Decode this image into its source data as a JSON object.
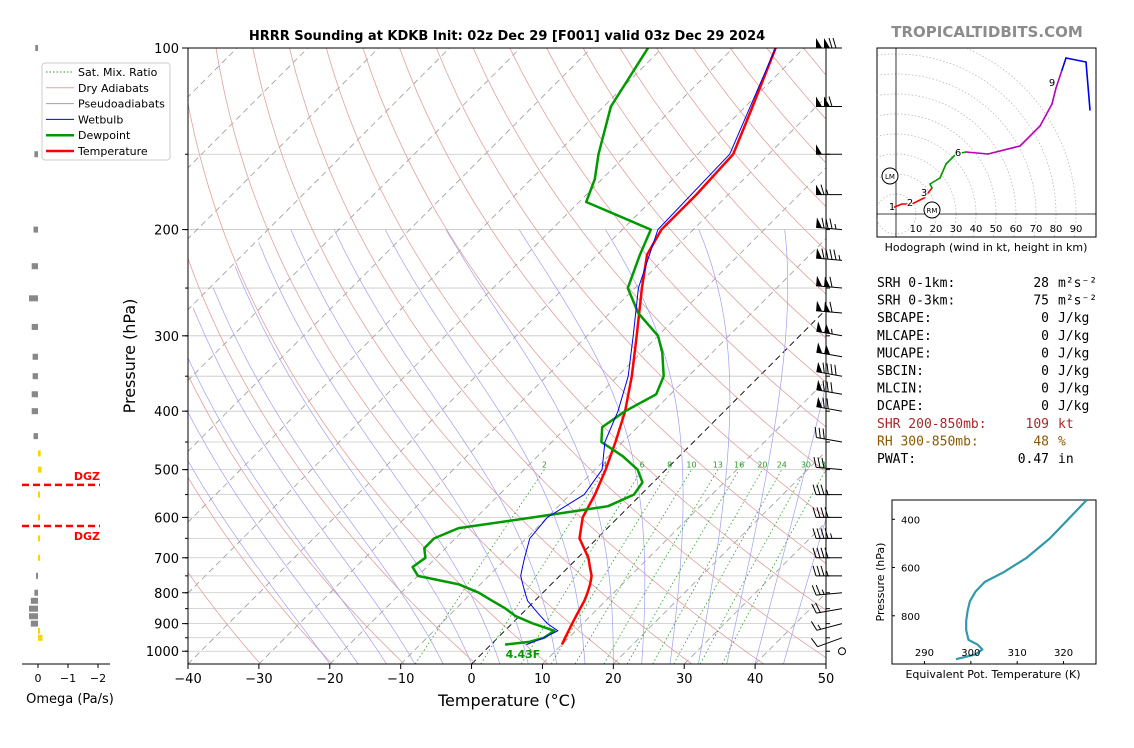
{
  "header": {
    "title": "HRRR Sounding at KDKB Init: 02z Dec 29 [F001] valid 03z Dec 29 2024",
    "watermark": "TROPICALTIDBITS.COM"
  },
  "colors": {
    "temperature": "#ff0000",
    "dewpoint": "#009900",
    "wetbulb": "#0000ee",
    "dry_adiabat": "#e0a0a0",
    "pseudoadiabat": "#a0a0a0",
    "mixing_ratio": "#2a9a2a",
    "isotherm": "#a0a0ee",
    "dgz": "#ff0000",
    "shr": "#a52a2a",
    "rh": "#8b5a00",
    "theta_e": "#3399aa"
  },
  "legend": {
    "items": [
      {
        "key": "sat_mix",
        "label": "Sat. Mix. Ratio"
      },
      {
        "key": "dry",
        "label": "Dry Adiabats"
      },
      {
        "key": "pseudo",
        "label": "Pseudoadiabats"
      },
      {
        "key": "wetbulb",
        "label": "Wetbulb"
      },
      {
        "key": "dewpoint",
        "label": "Dewpoint"
      },
      {
        "key": "temperature",
        "label": "Temperature"
      }
    ]
  },
  "chart_data": [
    {
      "type": "line",
      "name": "skewt",
      "xlabel": "Temperature (°C)",
      "ylabel": "Pressure (hPa)",
      "xlim": [
        -40,
        50
      ],
      "ylim": [
        1050,
        100
      ],
      "y_scale": "log",
      "x_ticks": [
        -40,
        -30,
        -20,
        -10,
        0,
        10,
        20,
        30,
        40,
        50
      ],
      "x_tick_labels": [
        "−40",
        "−30",
        "−20",
        "−10",
        "0",
        "10",
        "20",
        "30",
        "40",
        "50"
      ],
      "y_ticks": [
        1000,
        900,
        800,
        700,
        600,
        500,
        400,
        300,
        200,
        100
      ],
      "y_tick_labels": [
        "1000",
        "900",
        "800",
        "700",
        "600",
        "500",
        "400",
        "300",
        "200",
        "100"
      ],
      "mixing_ratio_labels": [
        "2",
        "4",
        "6",
        "8",
        "10",
        "13",
        "16",
        "20",
        "24",
        "30",
        "36"
      ],
      "series": [
        {
          "key": "temperature",
          "name": "Temperature",
          "p": [
            975,
            950,
            925,
            900,
            875,
            850,
            825,
            800,
            775,
            750,
            725,
            700,
            650,
            600,
            550,
            500,
            450,
            400,
            350,
            300,
            250,
            220,
            200,
            175,
            150,
            125,
            100
          ],
          "t": [
            10.0,
            9.5,
            9.0,
            8.5,
            8.0,
            7.5,
            7.0,
            6.3,
            5.5,
            4.5,
            3.0,
            1.5,
            -2.5,
            -5.0,
            -6.5,
            -8.5,
            -11.0,
            -14.0,
            -18.0,
            -23.0,
            -29.0,
            -33.0,
            -34.5,
            -34.5,
            -35.0,
            -39.0,
            -44.0
          ]
        },
        {
          "key": "dewpoint",
          "name": "Dewpoint",
          "p": [
            975,
            965,
            950,
            925,
            900,
            875,
            850,
            825,
            800,
            775,
            750,
            725,
            700,
            675,
            650,
            625,
            600,
            575,
            550,
            525,
            500,
            475,
            450,
            425,
            400,
            375,
            350,
            320,
            300,
            275,
            250,
            220,
            200,
            180,
            165,
            150,
            125,
            100
          ],
          "t": [
            2.0,
            5.0,
            6.5,
            7.0,
            3.0,
            -0.5,
            -3.0,
            -6.0,
            -9.0,
            -13.0,
            -20.0,
            -22.0,
            -21.5,
            -23.0,
            -23.0,
            -21.0,
            -12.0,
            -3.0,
            -1.0,
            -1.5,
            -4.0,
            -8.0,
            -13.0,
            -15.0,
            -14.0,
            -12.0,
            -13.5,
            -17.0,
            -20.0,
            -26.0,
            -31.0,
            -34.0,
            -36.0,
            -49.0,
            -51.0,
            -54.0,
            -59.0,
            -62.0
          ]
        },
        {
          "key": "wetbulb",
          "name": "Wetbulb",
          "p": [
            975,
            950,
            925,
            900,
            875,
            850,
            825,
            800,
            775,
            750,
            725,
            700,
            650,
            600,
            550,
            500,
            450,
            400,
            350,
            300,
            250,
            200,
            150,
            100
          ],
          "t": [
            5.0,
            6.5,
            7.5,
            5.0,
            3.0,
            1.0,
            -1.0,
            -2.5,
            -4.0,
            -5.5,
            -6.5,
            -7.5,
            -9.5,
            -10.0,
            -8.0,
            -9.0,
            -12.5,
            -15.0,
            -18.5,
            -23.5,
            -29.5,
            -35.0,
            -35.5,
            -44.0
          ]
        }
      ],
      "surface_label": "4.43F",
      "dgz": [
        {
          "p": 530,
          "label": "DGZ"
        },
        {
          "p": 620,
          "label": "DGZ"
        }
      ],
      "wind_barbs": {
        "p": [
          1000,
          950,
          900,
          850,
          800,
          750,
          700,
          650,
          600,
          550,
          500,
          450,
          400,
          375,
          350,
          325,
          300,
          275,
          250,
          225,
          200,
          175,
          150,
          125,
          100
        ],
        "speed_kt": [
          0,
          10,
          15,
          20,
          25,
          35,
          40,
          45,
          40,
          35,
          30,
          30,
          70,
          80,
          90,
          100,
          105,
          110,
          110,
          95,
          85,
          65,
          50,
          110,
          120
        ],
        "dir_deg": [
          0,
          250,
          255,
          260,
          265,
          270,
          270,
          270,
          270,
          270,
          275,
          280,
          280,
          280,
          280,
          280,
          280,
          275,
          275,
          275,
          275,
          270,
          270,
          270,
          270
        ]
      }
    },
    {
      "type": "bar",
      "name": "omega",
      "xlabel": "Omega (Pa/s)",
      "x_ticks": [
        0,
        -1,
        -2
      ],
      "x_tick_labels": [
        "0",
        "−1",
        "−2"
      ],
      "p": [
        100,
        150,
        200,
        230,
        260,
        290,
        325,
        350,
        375,
        400,
        440,
        470,
        500,
        550,
        600,
        650,
        700,
        750,
        800,
        825,
        850,
        875,
        900,
        925,
        950
      ],
      "values": [
        -0.03,
        -0.04,
        -0.05,
        -0.07,
        -0.1,
        -0.07,
        -0.06,
        -0.06,
        -0.07,
        -0.07,
        -0.05,
        0.03,
        0.04,
        0.02,
        0.02,
        0.02,
        0.01,
        -0.02,
        -0.04,
        -0.08,
        -0.1,
        -0.1,
        -0.08,
        0.02,
        0.05
      ]
    },
    {
      "type": "line",
      "name": "hodograph",
      "xlabel": "Hodograph (wind in kt, height in km)",
      "rings": [
        10,
        20,
        30,
        40,
        50,
        60,
        70,
        80,
        90
      ],
      "ring_labels": [
        "10",
        "20",
        "30",
        "40",
        "50",
        "60",
        "70",
        "80",
        "90"
      ],
      "u": [
        -2,
        3,
        8,
        14,
        18,
        17,
        22,
        25,
        30,
        35,
        46,
        62,
        72,
        78,
        80,
        83,
        85,
        95,
        97
      ],
      "v": [
        3,
        5,
        5,
        8,
        13,
        15,
        18,
        25,
        30,
        31,
        30,
        34,
        44,
        55,
        63,
        72,
        78,
        76,
        52
      ],
      "segment_colors": [
        "#ff0000",
        "#ff0000",
        "#ff0000",
        "#ff0000",
        "#009900",
        "#009900",
        "#009900",
        "#009900",
        "#009900",
        "#bb00bb",
        "#bb00bb",
        "#bb00bb",
        "#bb00bb",
        "#bb00bb",
        "#bb00bb",
        "#0000ee",
        "#0000ee",
        "#0000ee"
      ],
      "height_marks": [
        {
          "label": "1",
          "u": -2,
          "v": 4
        },
        {
          "label": "2",
          "u": 7,
          "v": 6
        },
        {
          "label": "3",
          "u": 14,
          "v": 11
        },
        {
          "label": "6",
          "u": 31,
          "v": 31
        },
        {
          "label": "9",
          "u": 78,
          "v": 66
        }
      ],
      "storm_motion": [
        {
          "label": "LM",
          "u": -3,
          "v": 19
        },
        {
          "label": "RM",
          "u": 18,
          "v": 2
        }
      ]
    },
    {
      "type": "line",
      "name": "theta_e",
      "xlabel": "Equivalent Pot. Temperature (K)",
      "ylabel": "Pressure (hPa)",
      "x_ticks": [
        290,
        300,
        310,
        320
      ],
      "x_tick_labels": [
        "290",
        "300",
        "310",
        "320"
      ],
      "y_ticks": [
        400,
        600,
        800
      ],
      "y_tick_labels": [
        "400",
        "600",
        "800"
      ],
      "xlim": [
        283,
        327
      ],
      "ylim": [
        1000,
        320
      ],
      "theta": [
        296.8,
        301,
        302.5,
        301.5,
        299.5,
        299,
        299,
        299.3,
        299.8,
        301,
        303,
        307,
        312,
        317,
        321,
        325
      ],
      "p": [
        980,
        960,
        940,
        920,
        900,
        860,
        820,
        780,
        740,
        700,
        660,
        620,
        560,
        480,
        400,
        320
      ]
    }
  ],
  "indices": {
    "rows": [
      {
        "label": "SRH 0-1km:",
        "value": "28",
        "unit": "m²s⁻²",
        "color": "#000000"
      },
      {
        "label": "SRH 0-3km:",
        "value": "75",
        "unit": "m²s⁻²",
        "color": "#000000"
      },
      {
        "label": "SBCAPE:",
        "value": "0",
        "unit": "J/kg",
        "color": "#000000"
      },
      {
        "label": "MLCAPE:",
        "value": "0",
        "unit": "J/kg",
        "color": "#000000"
      },
      {
        "label": "MUCAPE:",
        "value": "0",
        "unit": "J/kg",
        "color": "#000000"
      },
      {
        "label": "SBCIN:",
        "value": "0",
        "unit": "J/kg",
        "color": "#000000"
      },
      {
        "label": "MLCIN:",
        "value": "0",
        "unit": "J/kg",
        "color": "#000000"
      },
      {
        "label": "DCAPE:",
        "value": "0",
        "unit": "J/kg",
        "color": "#000000"
      },
      {
        "label": "SHR 200-850mb:",
        "value": "109",
        "unit": "kt",
        "color": "#a52a2a"
      },
      {
        "label": "RH 300-850mb:",
        "value": "48",
        "unit": "%",
        "color": "#8b5a00"
      },
      {
        "label": "PWAT:",
        "value": "0.47",
        "unit": "in",
        "color": "#000000"
      }
    ]
  }
}
